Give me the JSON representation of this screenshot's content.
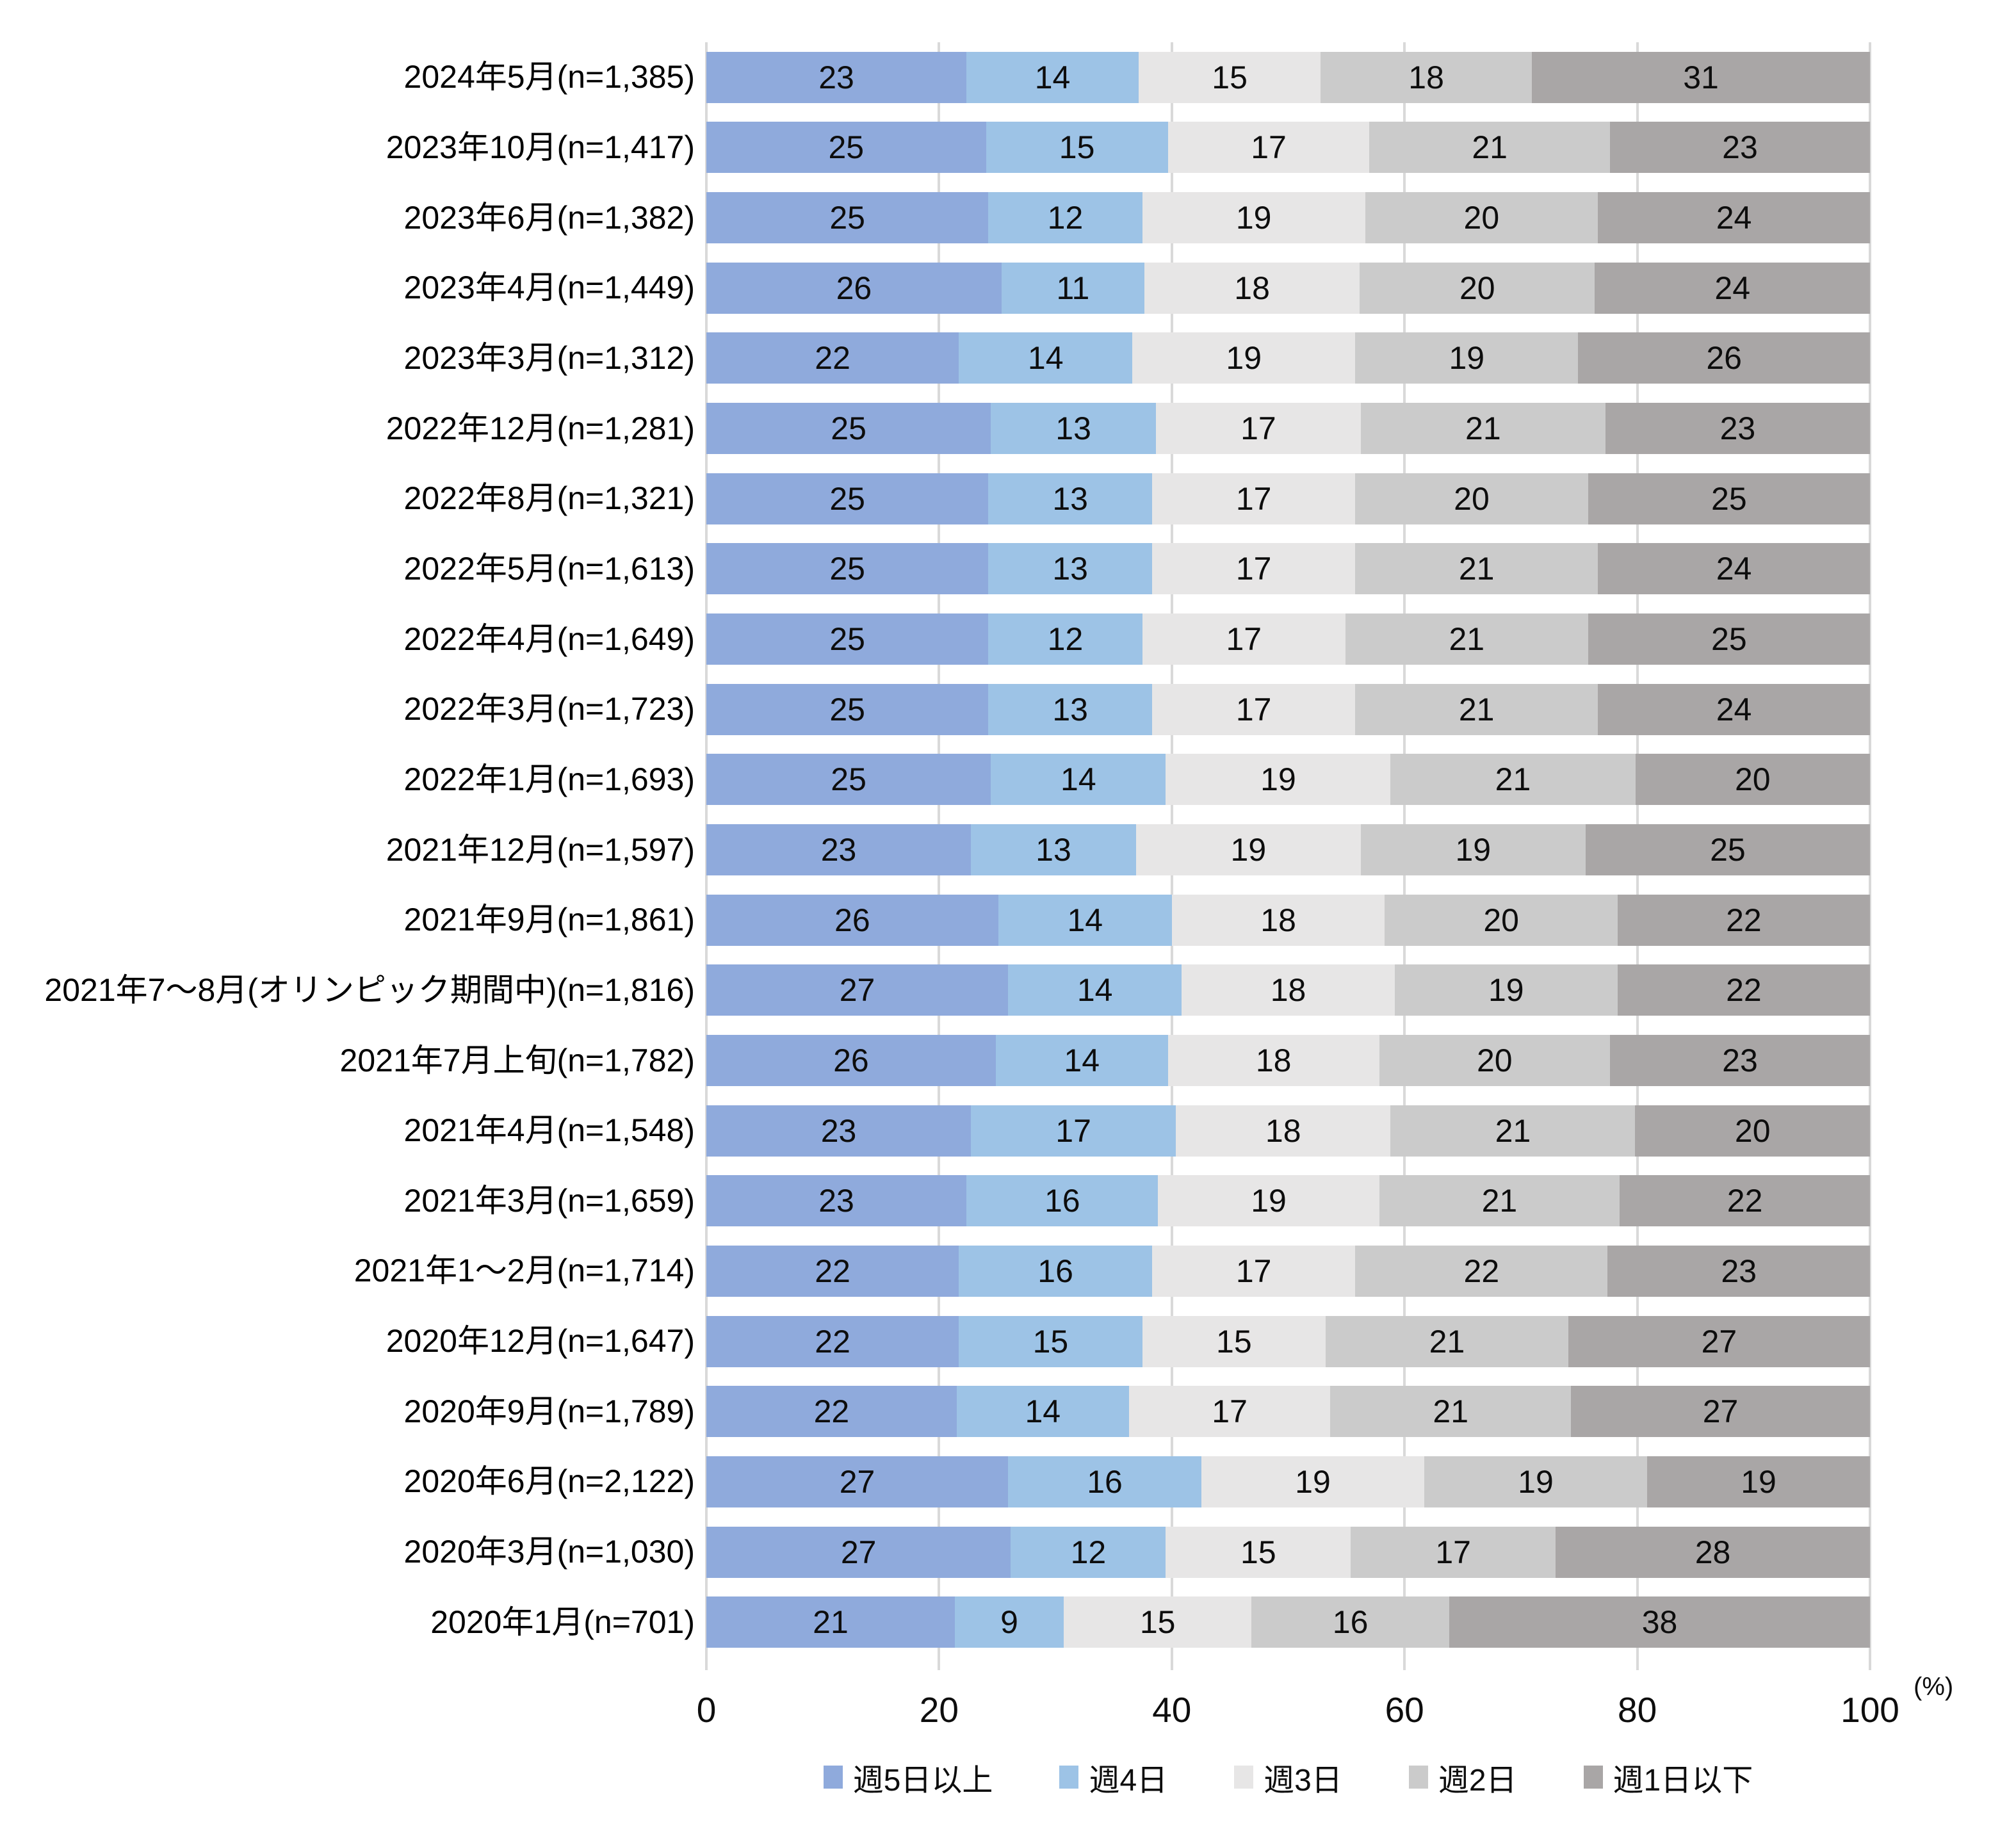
{
  "chart_data": {
    "type": "bar",
    "variant": "stacked-100",
    "orientation": "horizontal",
    "title": "",
    "xlabel": "",
    "ylabel": "",
    "unit": "(%)",
    "xlim": [
      0,
      100
    ],
    "x_ticks": [
      0,
      20,
      40,
      60,
      80,
      100
    ],
    "grid": "vertical",
    "legend_position": "bottom",
    "categories": [
      "2024年5月(n=1,385)",
      "2023年10月(n=1,417)",
      "2023年6月(n=1,382)",
      "2023年4月(n=1,449)",
      "2023年3月(n=1,312)",
      "2022年12月(n=1,281)",
      "2022年8月(n=1,321)",
      "2022年5月(n=1,613)",
      "2022年4月(n=1,649)",
      "2022年3月(n=1,723)",
      "2022年1月(n=1,693)",
      "2021年12月(n=1,597)",
      "2021年9月(n=1,861)",
      "2021年7〜8月(オリンピック期間中)(n=1,816)",
      "2021年7月上旬(n=1,782)",
      "2021年4月(n=1,548)",
      "2021年3月(n=1,659)",
      "2021年1〜2月(n=1,714)",
      "2020年12月(n=1,647)",
      "2020年9月(n=1,789)",
      "2020年6月(n=2,122)",
      "2020年3月(n=1,030)",
      "2020年1月(n=701)"
    ],
    "series": [
      {
        "name": "週5日以上",
        "color": "#8faadc",
        "values": [
          23,
          25,
          25,
          26,
          22,
          25,
          25,
          25,
          25,
          25,
          25,
          23,
          26,
          27,
          26,
          23,
          23,
          22,
          22,
          22,
          27,
          27,
          21
        ]
      },
      {
        "name": "週4日",
        "color": "#9dc3e6",
        "values": [
          14,
          15,
          12,
          11,
          14,
          13,
          13,
          13,
          12,
          13,
          14,
          13,
          14,
          14,
          14,
          17,
          16,
          16,
          15,
          14,
          16,
          12,
          9
        ]
      },
      {
        "name": "週3日",
        "color": "#e7e6e6",
        "values": [
          15,
          17,
          19,
          18,
          19,
          17,
          17,
          17,
          17,
          17,
          19,
          19,
          18,
          18,
          18,
          18,
          19,
          17,
          15,
          17,
          19,
          15,
          15
        ]
      },
      {
        "name": "週2日",
        "color": "#cbcbcb",
        "values": [
          18,
          21,
          20,
          20,
          19,
          21,
          20,
          21,
          21,
          21,
          21,
          19,
          20,
          19,
          20,
          21,
          21,
          22,
          21,
          21,
          19,
          17,
          16
        ]
      },
      {
        "name": "週1日以下",
        "color": "#a9a6a6",
        "values": [
          31,
          23,
          24,
          24,
          26,
          23,
          25,
          24,
          25,
          24,
          20,
          25,
          22,
          22,
          23,
          20,
          22,
          23,
          27,
          27,
          19,
          28,
          38
        ]
      }
    ],
    "colors": {
      "gridline": "#d9d9d9",
      "value_text": "#0d0d0d",
      "label_text": "#000000",
      "background": "#ffffff"
    }
  },
  "axis": {
    "tick_labels": [
      "0",
      "20",
      "40",
      "60",
      "80",
      "100"
    ],
    "unit_label": "(%)"
  },
  "legend": {
    "items": [
      "週5日以上",
      "週4日",
      "週3日",
      "週2日",
      "週1日以下"
    ]
  }
}
